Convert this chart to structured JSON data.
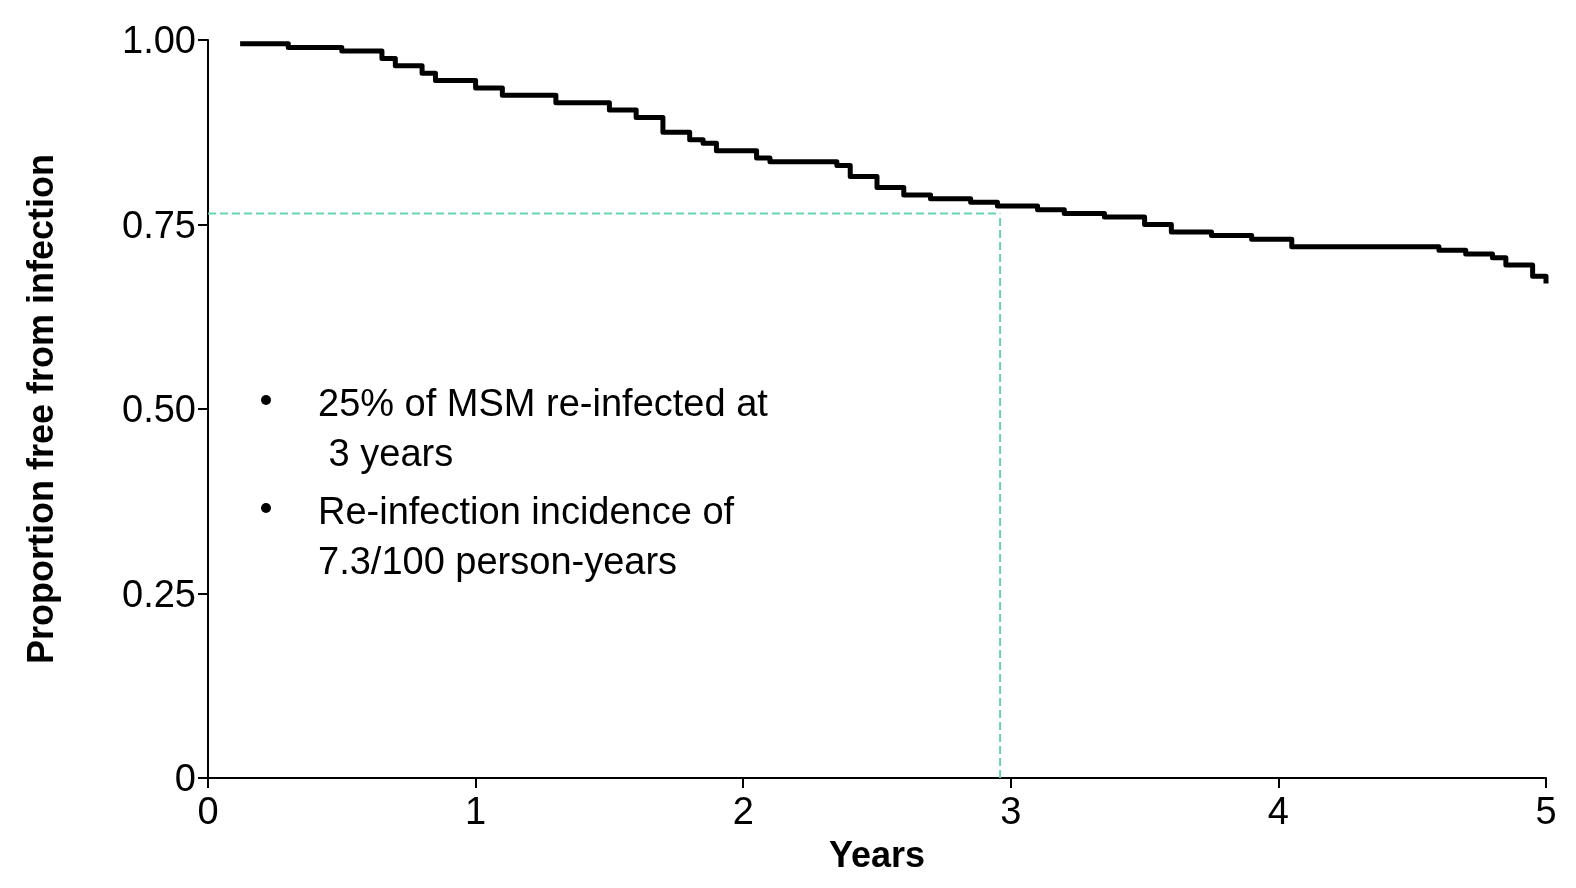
{
  "chart_data": {
    "type": "step",
    "xlabel": "Years",
    "ylabel": "Proportion free from infection",
    "xlim": [
      0,
      5
    ],
    "ylim": [
      0,
      1
    ],
    "xticks": [
      0,
      1,
      2,
      3,
      4,
      5
    ],
    "yticks": [
      {
        "value": 0,
        "label": "0"
      },
      {
        "value": 0.25,
        "label": "0.25"
      },
      {
        "value": 0.5,
        "label": "0.50"
      },
      {
        "value": 0.75,
        "label": "0.75"
      },
      {
        "value": 1,
        "label": "1.00"
      }
    ],
    "grid": false,
    "marker": "none",
    "line_style": "solid",
    "series": [
      {
        "color": "#000000",
        "x": [
          0.12,
          0.3,
          0.5,
          0.65,
          0.7,
          0.8,
          0.85,
          1.0,
          1.1,
          1.3,
          1.5,
          1.6,
          1.7,
          1.8,
          1.85,
          1.9,
          2.05,
          2.1,
          2.35,
          2.4,
          2.5,
          2.6,
          2.7,
          2.85,
          2.95,
          3.1,
          3.2,
          3.35,
          3.5,
          3.6,
          3.75,
          3.9,
          4.05,
          4.5,
          4.6,
          4.7,
          4.8,
          4.85,
          4.95,
          5.0
        ],
        "values": [
          0.995,
          0.99,
          0.985,
          0.975,
          0.965,
          0.955,
          0.945,
          0.935,
          0.925,
          0.915,
          0.905,
          0.895,
          0.875,
          0.865,
          0.86,
          0.85,
          0.84,
          0.835,
          0.83,
          0.815,
          0.8,
          0.79,
          0.785,
          0.78,
          0.775,
          0.77,
          0.765,
          0.76,
          0.75,
          0.74,
          0.735,
          0.73,
          0.72,
          0.72,
          0.715,
          0.71,
          0.705,
          0.695,
          0.68,
          0.67
        ]
      }
    ],
    "ref_lines": [
      {
        "axis": "y",
        "value": 0.765,
        "color": "#66d4b0",
        "line_style": "dashed"
      },
      {
        "axis": "x",
        "value": 2.96,
        "color": "#66d4b0",
        "line_style": "dashed"
      }
    ],
    "annotations": [
      "25% of MSM re-infected at 3 years",
      "Re-infection incidence of 7.3/100 person-years"
    ]
  }
}
